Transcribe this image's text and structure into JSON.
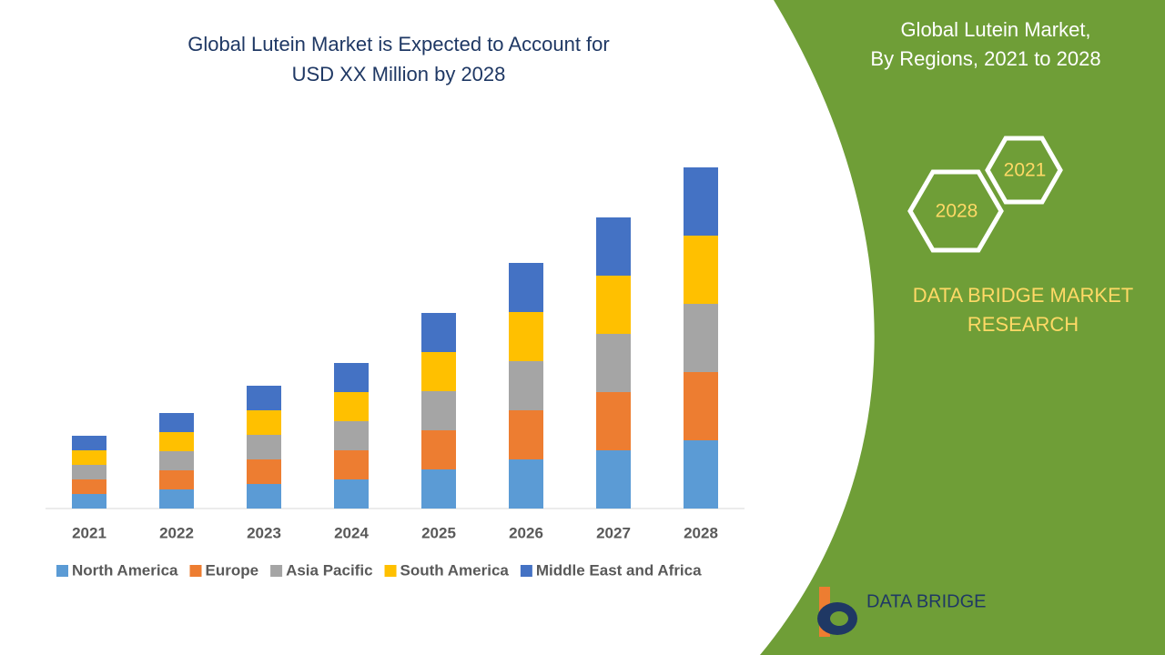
{
  "chart_data": {
    "type": "bar",
    "stacked": true,
    "title": [
      "Global Lutein Market is Expected to Account for",
      "USD XX Million by 2028"
    ],
    "categories": [
      "2021",
      "2022",
      "2023",
      "2024",
      "2025",
      "2026",
      "2027",
      "2028"
    ],
    "series": [
      {
        "name": "North America",
        "color": "#5b9bd5",
        "values": [
          1.6,
          2.1,
          2.7,
          3.2,
          4.3,
          5.4,
          6.4,
          7.5
        ]
      },
      {
        "name": "Europe",
        "color": "#ed7d31",
        "values": [
          1.6,
          2.1,
          2.7,
          3.2,
          4.3,
          5.4,
          6.4,
          7.5
        ]
      },
      {
        "name": "Asia Pacific",
        "color": "#a5a5a5",
        "values": [
          1.6,
          2.1,
          2.7,
          3.2,
          4.3,
          5.4,
          6.4,
          7.5
        ]
      },
      {
        "name": "South America",
        "color": "#ffc000",
        "values": [
          1.6,
          2.1,
          2.7,
          3.2,
          4.3,
          5.4,
          6.4,
          7.5
        ]
      },
      {
        "name": "Middle East and Africa",
        "color": "#4472c4",
        "values": [
          1.6,
          2.1,
          2.7,
          3.2,
          4.3,
          5.4,
          6.4,
          7.5
        ]
      }
    ],
    "ylim": [
      0,
      40
    ],
    "grid": false,
    "legend": "bottom"
  },
  "side_panel": {
    "title": [
      "Global Lutein Market,",
      "By Regions, 2021 to 2028"
    ],
    "badges": [
      "2021",
      "2028"
    ],
    "brand": [
      "DATA BRIDGE MARKET",
      "RESEARCH"
    ],
    "logo": "DATA BRIDGE"
  }
}
